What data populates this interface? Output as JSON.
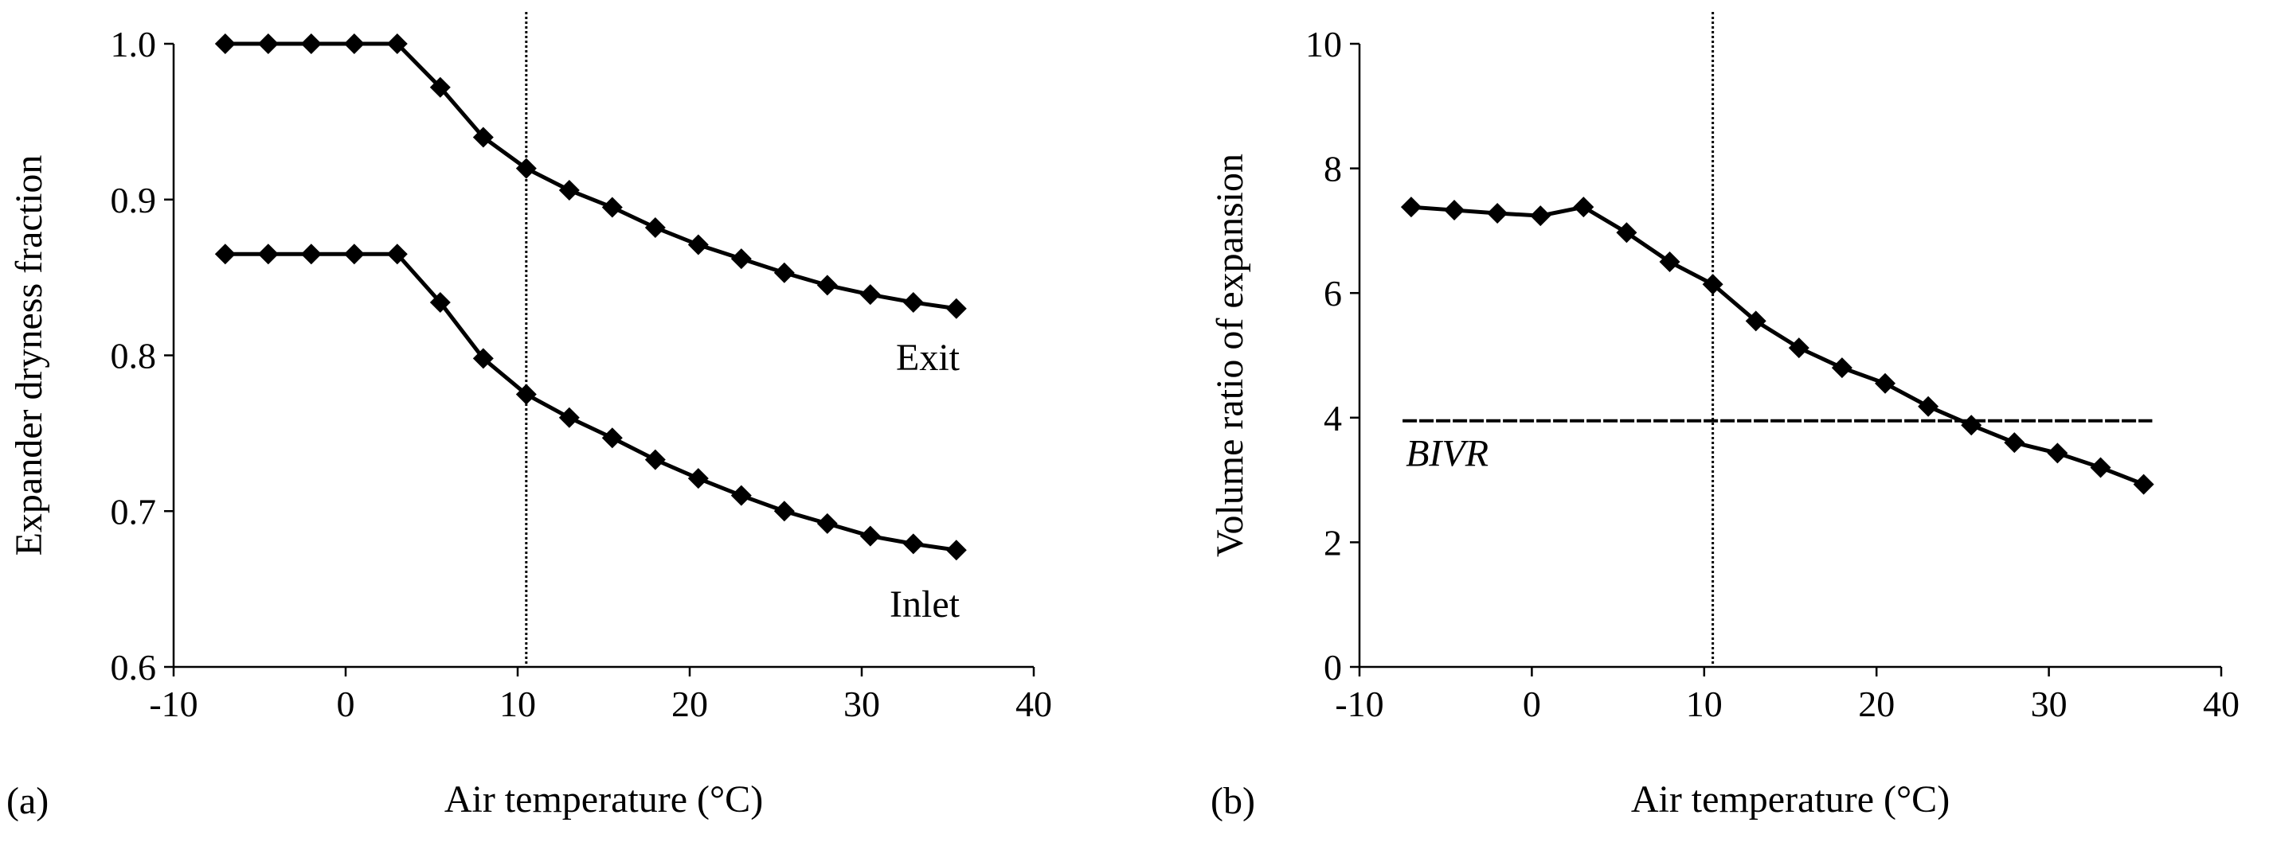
{
  "chart_data": [
    {
      "type": "line",
      "panel_label": "(a)",
      "xlabel": "Air temperature (°C)",
      "ylabel": "Expander dryness fraction",
      "xlim": [
        -10,
        40
      ],
      "ylim": [
        0.6,
        1.0
      ],
      "xticks": [
        -10,
        0,
        10,
        20,
        30,
        40
      ],
      "xtick_labels": [
        "-10",
        "0",
        "10",
        "20",
        "30",
        "40"
      ],
      "yticks": [
        0.6,
        0.7,
        0.8,
        0.9,
        1.0
      ],
      "ytick_labels": [
        "0.6",
        "0.7",
        "0.8",
        "0.9",
        "1.0"
      ],
      "x": [
        -7,
        -4.5,
        -2,
        0.5,
        3,
        5.5,
        8,
        10.5,
        13,
        15.5,
        18,
        20.5,
        23,
        25.5,
        28,
        30.5,
        33,
        35.5
      ],
      "vertical_line_x": 10.5,
      "series": [
        {
          "name": "Exit",
          "values": [
            1.0,
            1.0,
            1.0,
            1.0,
            1.0,
            0.972,
            0.94,
            0.92,
            0.906,
            0.895,
            0.882,
            0.871,
            0.862,
            0.853,
            0.845,
            0.839,
            0.834,
            0.83
          ]
        },
        {
          "name": "Inlet",
          "values": [
            0.865,
            0.865,
            0.865,
            0.865,
            0.865,
            0.834,
            0.798,
            0.775,
            0.76,
            0.747,
            0.733,
            0.721,
            0.71,
            0.7,
            0.692,
            0.684,
            0.679,
            0.675
          ]
        }
      ]
    },
    {
      "type": "line",
      "panel_label": "(b)",
      "xlabel": "Air temperature (°C)",
      "ylabel": "Volume ratio of expansion",
      "xlim": [
        -10,
        40
      ],
      "ylim": [
        0,
        10
      ],
      "xticks": [
        -10,
        0,
        10,
        20,
        30,
        40
      ],
      "xtick_labels": [
        "-10",
        "0",
        "10",
        "20",
        "30",
        "40"
      ],
      "yticks": [
        0,
        2,
        4,
        6,
        8,
        10
      ],
      "ytick_labels": [
        "0",
        "2",
        "4",
        "6",
        "8",
        "10"
      ],
      "x": [
        -7,
        -4.5,
        -2,
        0.5,
        3,
        5.5,
        8,
        10.5,
        13,
        15.5,
        18,
        20.5,
        23,
        25.5,
        28,
        30.5,
        33,
        35.5
      ],
      "vertical_line_x": 10.5,
      "series": [
        {
          "name": "Volume ratio",
          "values": [
            7.38,
            7.33,
            7.28,
            7.24,
            7.38,
            6.97,
            6.5,
            6.14,
            5.55,
            5.12,
            4.8,
            4.55,
            4.18,
            3.88,
            3.6,
            3.43,
            3.2,
            2.93
          ]
        }
      ],
      "reference_line": {
        "label": "BIVR",
        "y": 3.95,
        "x_range": [
          -7.5,
          36
        ]
      }
    }
  ]
}
